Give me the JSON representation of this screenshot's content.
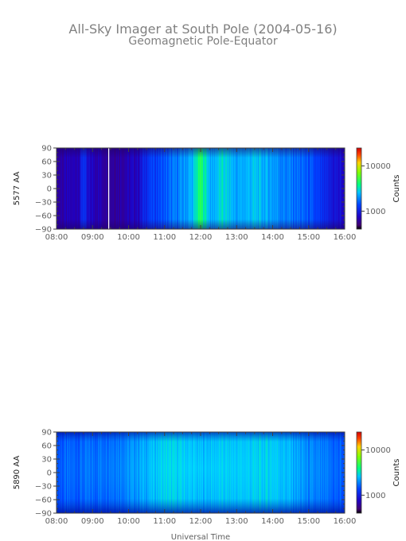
{
  "title": "All-Sky Imager at South Pole (2004-05-16)",
  "subtitle": "Geomagnetic Pole-Equator",
  "xlabel": "Universal Time",
  "chart_data": [
    {
      "type": "heatmap",
      "ylabel": "5577 AA",
      "x_ticks": [
        "08:00",
        "09:00",
        "10:00",
        "11:00",
        "12:00",
        "13:00",
        "14:00",
        "15:00",
        "16:00"
      ],
      "x_range_hours": [
        8,
        16
      ],
      "y_ticks": [
        "90",
        "60",
        "30",
        "0",
        "−30",
        "−60",
        "−90"
      ],
      "y_tick_values": [
        90,
        60,
        30,
        0,
        -30,
        -60,
        -90
      ],
      "ylim": [
        -90,
        90
      ],
      "colorbar": {
        "label": "Counts",
        "ticks": [
          "10000",
          "1000"
        ],
        "tick_values": [
          10000,
          1000
        ],
        "scale": "log",
        "range": [
          400,
          25000
        ]
      },
      "profile": {
        "time_hours": [
          8.0,
          8.5,
          8.65,
          8.75,
          8.85,
          9.2,
          9.45,
          9.6,
          10.0,
          10.3,
          10.5,
          11.0,
          11.5,
          11.8,
          12.0,
          12.1,
          12.3,
          12.6,
          13.0,
          13.5,
          14.0,
          14.3,
          14.7,
          15.0,
          15.5,
          16.0
        ],
        "counts": [
          650,
          700,
          800,
          1300,
          800,
          700,
          650,
          650,
          700,
          800,
          1200,
          1500,
          2000,
          2500,
          4500,
          3500,
          2200,
          3000,
          2200,
          2600,
          2200,
          1900,
          1700,
          1500,
          1000,
          800
        ]
      },
      "data_gap_hours": [
        9.45
      ]
    },
    {
      "type": "heatmap",
      "ylabel": "5890 AA",
      "x_ticks": [
        "08:00",
        "09:00",
        "10:00",
        "11:00",
        "12:00",
        "13:00",
        "14:00",
        "15:00",
        "16:00"
      ],
      "x_range_hours": [
        8,
        16
      ],
      "y_ticks": [
        "90",
        "60",
        "30",
        "0",
        "−30",
        "−60",
        "−90"
      ],
      "y_tick_values": [
        90,
        60,
        30,
        0,
        -30,
        -60,
        -90
      ],
      "ylim": [
        -90,
        90
      ],
      "colorbar": {
        "label": "Counts",
        "ticks": [
          "10000",
          "1000"
        ],
        "tick_values": [
          10000,
          1000
        ],
        "scale": "log",
        "range": [
          400,
          25000
        ]
      },
      "profile": {
        "time_hours": [
          8.0,
          9.0,
          10.0,
          10.5,
          11.0,
          11.5,
          12.0,
          12.5,
          13.0,
          14.0,
          14.5,
          15.0,
          16.0
        ],
        "counts": [
          1500,
          1600,
          1800,
          2200,
          2700,
          2600,
          2300,
          2500,
          2500,
          2700,
          2300,
          1800,
          1500
        ]
      },
      "data_gap_hours": []
    }
  ]
}
